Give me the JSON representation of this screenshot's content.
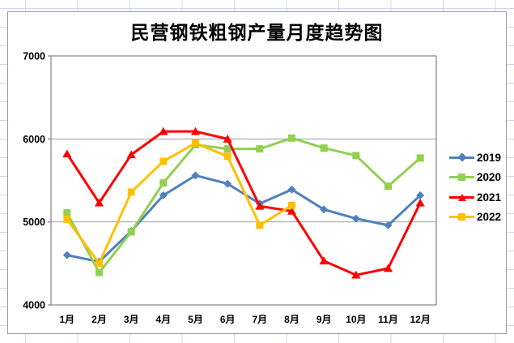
{
  "chart_data": {
    "type": "line",
    "title": "民营钢铁粗钢产量月度趋势图",
    "categories": [
      "1月",
      "2月",
      "3月",
      "4月",
      "5月",
      "6月",
      "7月",
      "8月",
      "9月",
      "10月",
      "11月",
      "12月"
    ],
    "series": [
      {
        "name": "2019",
        "color": "#4F81BD",
        "marker": "diamond",
        "values": [
          4600,
          4520,
          4890,
          5320,
          5560,
          5460,
          5220,
          5390,
          5150,
          5040,
          4960,
          5320
        ]
      },
      {
        "name": "2020",
        "color": "#92D050",
        "marker": "square",
        "values": [
          5110,
          4390,
          4880,
          5470,
          5930,
          5880,
          5880,
          6010,
          5890,
          5800,
          5430,
          5770
        ]
      },
      {
        "name": "2021",
        "color": "#FF0000",
        "marker": "triangle",
        "values": [
          5820,
          5230,
          5810,
          6090,
          6090,
          6000,
          5190,
          5130,
          4530,
          4360,
          4440,
          5230
        ]
      },
      {
        "name": "2022",
        "color": "#FFC000",
        "marker": "square",
        "values": [
          5030,
          4500,
          5360,
          5730,
          5950,
          5790,
          4960,
          5200,
          null,
          null,
          null,
          null
        ]
      }
    ],
    "xlabel": "",
    "ylabel": "",
    "ylim": [
      4000,
      7000
    ],
    "y_ticks": [
      4000,
      5000,
      6000,
      7000
    ],
    "grid": "horizontal",
    "legend_position": "right"
  },
  "colors": {
    "plot_border": "#8c8c8c",
    "gridline": "#9b9b9b",
    "sheet_gridline": "#cfd8e8",
    "chart_frame_border": "#9a9a9a",
    "background": "#ffffff"
  }
}
